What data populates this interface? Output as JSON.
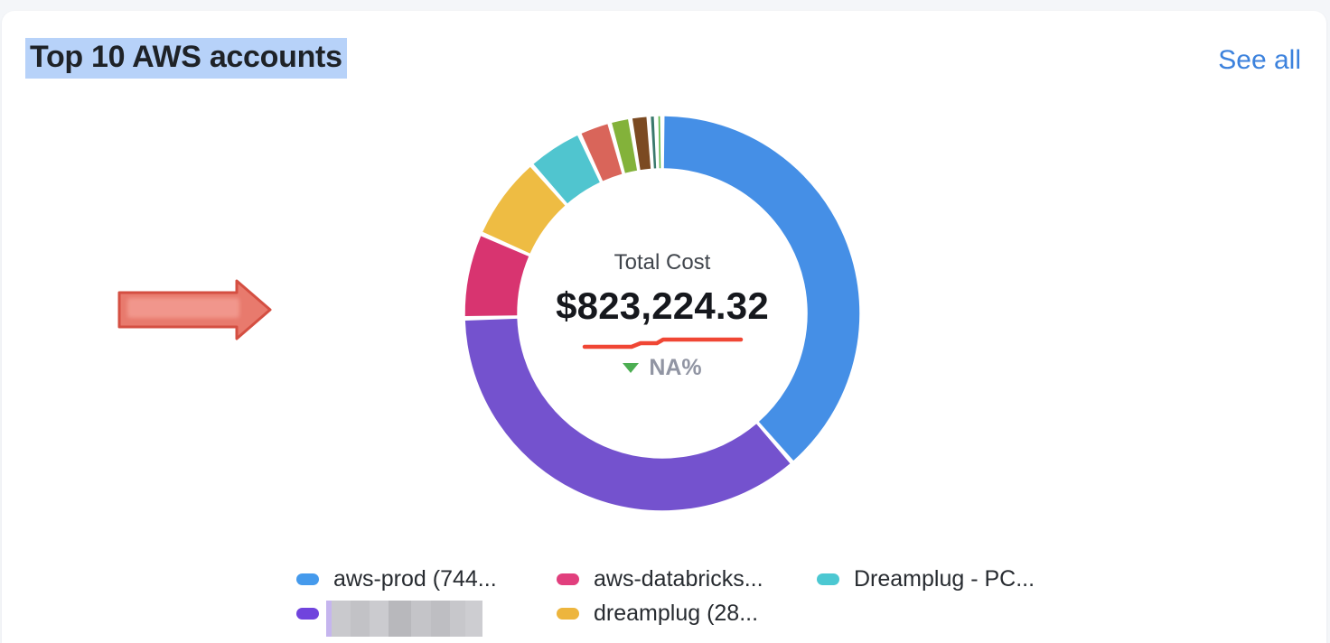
{
  "page": {
    "background_color": "#f4f6f9",
    "card_color": "#ffffff"
  },
  "header": {
    "title": "Top 10 AWS accounts",
    "title_highlight_color": "#b7d2f9",
    "see_all_label": "See all",
    "link_color": "#3c82dd"
  },
  "chart_data": {
    "type": "pie",
    "title": "Top 10 AWS accounts",
    "center_label": "Total Cost",
    "center_value": "$823,224.32",
    "delta_label": "NA%",
    "delta_direction": "down",
    "delta_triangle_color": "#4cae52",
    "trend_line_color": "#f04634",
    "trend_line_points": [
      [
        5,
        15
      ],
      [
        57,
        15
      ],
      [
        67,
        11
      ],
      [
        85,
        11
      ],
      [
        92,
        7
      ],
      [
        178,
        7
      ]
    ],
    "segments": [
      {
        "name": "aws-prod (744...",
        "color": "#458fe6",
        "percent": 38.6
      },
      {
        "name": "",
        "color": "#7452ce",
        "percent": 36.0
      },
      {
        "name": "aws-databricks...",
        "color": "#d83470",
        "percent": 7.0
      },
      {
        "name": "dreamplug (28...",
        "color": "#eebc43",
        "percent": 6.9
      },
      {
        "name": "Dreamplug - PC...",
        "color": "#50c5cf",
        "percent": 4.6
      },
      {
        "name": "",
        "color": "#d9655a",
        "percent": 2.6
      },
      {
        "name": "",
        "color": "#83b23a",
        "percent": 1.7
      },
      {
        "name": "",
        "color": "#7b4a22",
        "percent": 1.5
      },
      {
        "name": "",
        "color": "#3a796d",
        "percent": 0.6
      },
      {
        "name": "",
        "color": "#5cb84a",
        "percent": 0.5
      }
    ]
  },
  "legend": {
    "rows": [
      [
        {
          "label": "aws-prod (744...",
          "color": "#459aec",
          "redacted": false
        },
        {
          "label": "aws-databricks...",
          "color": "#e13f7d",
          "redacted": false
        },
        {
          "label": "Dreamplug - PC...",
          "color": "#4cc8d2",
          "redacted": false
        }
      ],
      [
        {
          "label": "",
          "color": "#7044dd",
          "redacted": true
        },
        {
          "label": "dreamplug (28...",
          "color": "#edb53d",
          "redacted": false
        }
      ]
    ]
  },
  "annotations": {
    "arrow_fill": "#e87a6d",
    "arrow_border": "#d44f42",
    "arrow_redaction_color": "#f29a90"
  }
}
